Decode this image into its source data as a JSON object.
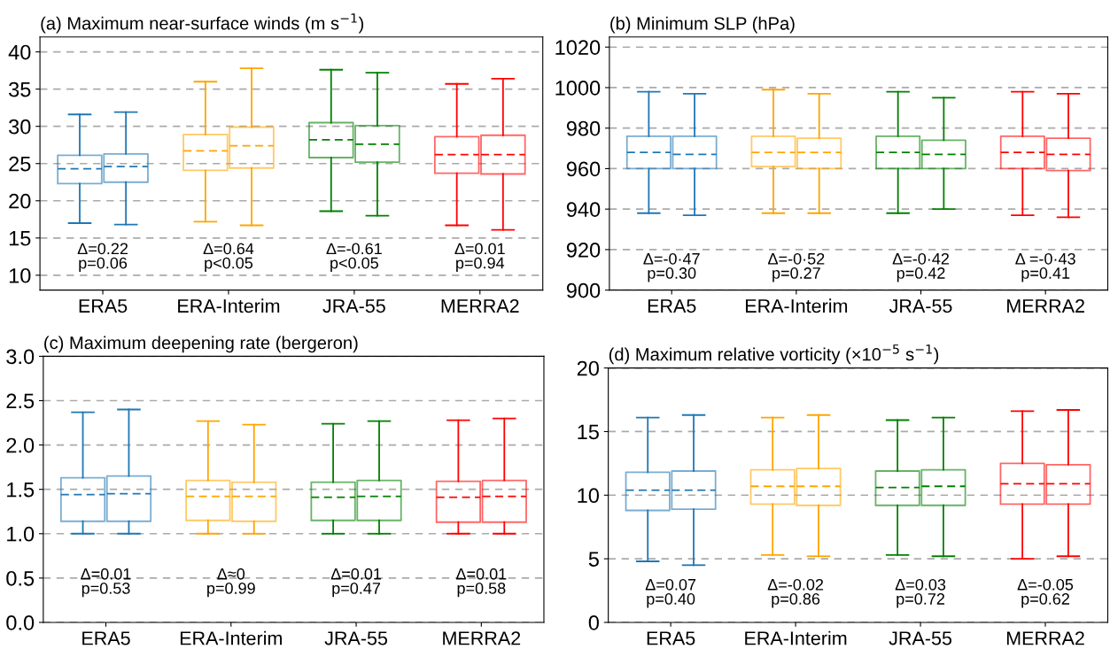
{
  "chart_data": [
    {
      "type": "box",
      "title": "(a) Maximum near-surface winds (m s$^{−1}$)",
      "categories": [
        "ERA5",
        "ERA-Interim",
        "JRA-55",
        "MERRA2"
      ],
      "ylim": [
        8,
        42
      ],
      "yticks": [
        10,
        15,
        20,
        25,
        30,
        35,
        40
      ],
      "grid": "y",
      "series": [
        {
          "colors": [
            "#1f77b4",
            "#ffa500",
            "#008000",
            "#ff0000"
          ],
          "boxes": [
            {
              "low": 17.0,
              "q1": 22.3,
              "median": 24.3,
              "q3": 26.1,
              "high": 31.6
            },
            {
              "low": 17.2,
              "q1": 24.1,
              "median": 26.7,
              "q3": 28.9,
              "high": 36.0
            },
            {
              "low": 18.6,
              "q1": 25.8,
              "median": 28.2,
              "q3": 30.5,
              "high": 37.6
            },
            {
              "low": 16.7,
              "q1": 23.7,
              "median": 26.2,
              "q3": 28.6,
              "high": 35.7
            }
          ]
        },
        {
          "colors": [
            "#1f77b4",
            "#ffa500",
            "#008000",
            "#ff0000"
          ],
          "boxes": [
            {
              "low": 16.8,
              "q1": 22.5,
              "median": 24.6,
              "q3": 26.3,
              "high": 31.9
            },
            {
              "low": 16.7,
              "q1": 24.4,
              "median": 27.4,
              "q3": 29.9,
              "high": 37.8
            },
            {
              "low": 18.0,
              "q1": 25.2,
              "median": 27.6,
              "q3": 30.1,
              "high": 37.2
            },
            {
              "low": 16.1,
              "q1": 23.6,
              "median": 26.2,
              "q3": 28.8,
              "high": 36.4
            }
          ]
        }
      ],
      "annotations": [
        "Δ=0.22\np=0.06",
        "Δ=0.64\np<0.05",
        "Δ=-0.61\np<0.05",
        "Δ=0.01\np=0.94"
      ]
    },
    {
      "type": "box",
      "title": "(b) Minimum SLP (hPa)",
      "categories": [
        "ERA5",
        "ERA-Interim",
        "JRA-55",
        "MERRA2"
      ],
      "ylim": [
        900,
        1025
      ],
      "yticks": [
        900,
        920,
        940,
        960,
        980,
        1000,
        1020
      ],
      "grid": "y",
      "series": [
        {
          "colors": [
            "#1f77b4",
            "#ffa500",
            "#008000",
            "#ff0000"
          ],
          "boxes": [
            {
              "low": 938,
              "q1": 960,
              "median": 968,
              "q3": 976,
              "high": 998
            },
            {
              "low": 938,
              "q1": 961,
              "median": 968,
              "q3": 976,
              "high": 999
            },
            {
              "low": 938,
              "q1": 960,
              "median": 968,
              "q3": 976,
              "high": 998
            },
            {
              "low": 937,
              "q1": 960,
              "median": 968,
              "q3": 976,
              "high": 998
            }
          ]
        },
        {
          "colors": [
            "#1f77b4",
            "#ffa500",
            "#008000",
            "#ff0000"
          ],
          "boxes": [
            {
              "low": 937,
              "q1": 960,
              "median": 967,
              "q3": 976,
              "high": 997
            },
            {
              "low": 938,
              "q1": 960,
              "median": 968,
              "q3": 975,
              "high": 997
            },
            {
              "low": 940,
              "q1": 960,
              "median": 967,
              "q3": 974,
              "high": 995
            },
            {
              "low": 936,
              "q1": 959,
              "median": 967,
              "q3": 975,
              "high": 997
            }
          ]
        }
      ],
      "annotations": [
        "Δ=-0·47\np=0.30",
        "Δ=-0·52\np=0.27",
        "Δ=-0·42\np=0.42",
        "Δ =-0·43\np=0.41"
      ]
    },
    {
      "type": "box",
      "title": "(c) Maximum deepening rate (bergeron)",
      "categories": [
        "ERA5",
        "ERA-Interim",
        "JRA-55",
        "MERRA2"
      ],
      "ylim": [
        0,
        3
      ],
      "yticks": [
        {
          "value": 0,
          "label": "0.0"
        },
        0.5,
        {
          "value": 1,
          "label": "1.0"
        },
        1.5,
        {
          "value": 2,
          "label": "2.0"
        },
        2.5,
        {
          "value": 3,
          "label": "3.0"
        }
      ],
      "grid": "y",
      "series": [
        {
          "colors": [
            "#1f77b4",
            "#ffa500",
            "#008000",
            "#ff0000"
          ],
          "boxes": [
            {
              "low": 1.0,
              "q1": 1.14,
              "median": 1.44,
              "q3": 1.63,
              "high": 2.37
            },
            {
              "low": 1.0,
              "q1": 1.15,
              "median": 1.42,
              "q3": 1.6,
              "high": 2.27
            },
            {
              "low": 1.0,
              "q1": 1.15,
              "median": 1.41,
              "q3": 1.58,
              "high": 2.24
            },
            {
              "low": 1.0,
              "q1": 1.13,
              "median": 1.41,
              "q3": 1.59,
              "high": 2.28
            }
          ]
        },
        {
          "colors": [
            "#1f77b4",
            "#ffa500",
            "#008000",
            "#ff0000"
          ],
          "boxes": [
            {
              "low": 1.0,
              "q1": 1.14,
              "median": 1.45,
              "q3": 1.65,
              "high": 2.4
            },
            {
              "low": 1.0,
              "q1": 1.14,
              "median": 1.42,
              "q3": 1.58,
              "high": 2.23
            },
            {
              "low": 1.0,
              "q1": 1.15,
              "median": 1.42,
              "q3": 1.6,
              "high": 2.27
            },
            {
              "low": 1.0,
              "q1": 1.13,
              "median": 1.42,
              "q3": 1.6,
              "high": 2.3
            }
          ]
        }
      ],
      "annotations": [
        "Δ=0.01\np=0.53",
        "Δ≈0\np=0.99",
        "Δ=0.01\np=0.47",
        "Δ=0.01\np=0.58"
      ]
    },
    {
      "type": "box",
      "title": "(d) Maximum relative vorticity (×10$^{−5}$ s$^{−1}$)",
      "categories": [
        "ERA5",
        "ERA-Interim",
        "JRA-55",
        "MERRA2"
      ],
      "ylim": [
        0,
        20
      ],
      "yticks": [
        0,
        5,
        10,
        15,
        20
      ],
      "grid": "y",
      "series": [
        {
          "colors": [
            "#1f77b4",
            "#ffa500",
            "#008000",
            "#ff0000"
          ],
          "boxes": [
            {
              "low": 4.8,
              "q1": 8.8,
              "median": 10.4,
              "q3": 11.8,
              "high": 16.1
            },
            {
              "low": 5.3,
              "q1": 9.3,
              "median": 10.7,
              "q3": 12.0,
              "high": 16.1
            },
            {
              "low": 5.3,
              "q1": 9.2,
              "median": 10.6,
              "q3": 11.9,
              "high": 15.9
            },
            {
              "low": 5.0,
              "q1": 9.3,
              "median": 10.9,
              "q3": 12.5,
              "high": 16.6
            }
          ]
        },
        {
          "colors": [
            "#1f77b4",
            "#ffa500",
            "#008000",
            "#ff0000"
          ],
          "boxes": [
            {
              "low": 4.5,
              "q1": 8.9,
              "median": 10.4,
              "q3": 11.9,
              "high": 16.3
            },
            {
              "low": 5.2,
              "q1": 9.2,
              "median": 10.7,
              "q3": 12.1,
              "high": 16.3
            },
            {
              "low": 5.2,
              "q1": 9.2,
              "median": 10.7,
              "q3": 12.0,
              "high": 16.1
            },
            {
              "low": 5.2,
              "q1": 9.3,
              "median": 10.9,
              "q3": 12.4,
              "high": 16.7
            }
          ]
        }
      ],
      "annotations": [
        "Δ=0.07\np=0.40",
        "Δ=-0.02\np=0.86",
        "Δ=0.03\np=0.72",
        "Δ=-0.05\np=0.62"
      ]
    }
  ]
}
